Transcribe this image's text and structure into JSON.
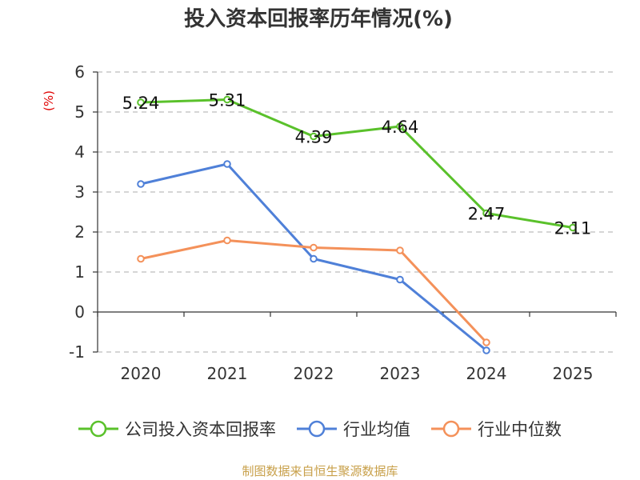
{
  "chart_data": {
    "type": "line",
    "title": "投入资本回报率历年情况(%)",
    "unit_label": "(%)",
    "categories": [
      "2020",
      "2021",
      "2022",
      "2023",
      "2024",
      "2025"
    ],
    "ylim": [
      -1,
      6
    ],
    "y_ticks": [
      "-1",
      "0",
      "1",
      "2",
      "3",
      "4",
      "5",
      "6"
    ],
    "grid": true,
    "legend_position": "bottom",
    "series": [
      {
        "name": "公司投入资本回报率",
        "color": "#5ac12b",
        "values": [
          5.24,
          5.31,
          4.39,
          4.64,
          2.47,
          2.11
        ],
        "labels": [
          "5.24",
          "5.31",
          "4.39",
          "4.64",
          "2.47",
          "2.11"
        ]
      },
      {
        "name": "行业均值",
        "color": "#4f80d8",
        "values": [
          3.2,
          3.7,
          1.33,
          0.81,
          -0.96,
          null
        ]
      },
      {
        "name": "行业中位数",
        "color": "#f4915a",
        "values": [
          1.33,
          1.79,
          1.61,
          1.54,
          -0.76,
          null
        ]
      }
    ],
    "source": "制图数据来自恒生聚源数据库"
  }
}
